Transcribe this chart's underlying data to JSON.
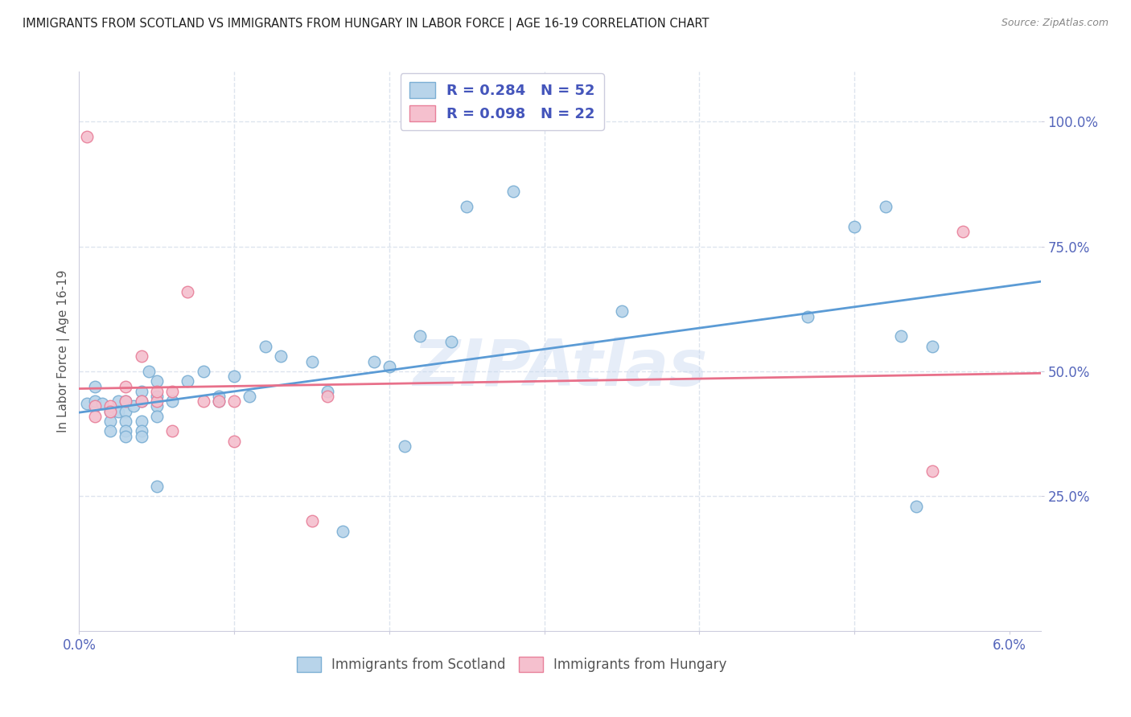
{
  "title": "IMMIGRANTS FROM SCOTLAND VS IMMIGRANTS FROM HUNGARY IN LABOR FORCE | AGE 16-19 CORRELATION CHART",
  "source": "Source: ZipAtlas.com",
  "ylabel": "In Labor Force | Age 16-19",
  "xlim": [
    0.0,
    0.062
  ],
  "ylim": [
    -0.02,
    1.1
  ],
  "scotland_color": "#b8d4ea",
  "scotland_edge": "#7bafd4",
  "hungary_color": "#f5c0ce",
  "hungary_edge": "#e8809a",
  "trendline_scotland_color": "#5b9bd5",
  "trendline_hungary_color": "#e8708a",
  "watermark": "ZIPAtlas",
  "scotland_x": [
    0.0005,
    0.001,
    0.001,
    0.0015,
    0.002,
    0.002,
    0.002,
    0.0025,
    0.0025,
    0.003,
    0.003,
    0.003,
    0.003,
    0.003,
    0.0035,
    0.004,
    0.004,
    0.004,
    0.004,
    0.004,
    0.0045,
    0.005,
    0.005,
    0.005,
    0.005,
    0.005,
    0.006,
    0.007,
    0.008,
    0.009,
    0.009,
    0.01,
    0.011,
    0.012,
    0.013,
    0.015,
    0.016,
    0.017,
    0.019,
    0.02,
    0.021,
    0.022,
    0.024,
    0.025,
    0.028,
    0.035,
    0.047,
    0.05,
    0.052,
    0.053,
    0.054,
    0.055
  ],
  "scotland_y": [
    0.435,
    0.44,
    0.47,
    0.435,
    0.42,
    0.4,
    0.38,
    0.44,
    0.42,
    0.44,
    0.42,
    0.4,
    0.38,
    0.37,
    0.43,
    0.46,
    0.44,
    0.4,
    0.38,
    0.37,
    0.5,
    0.48,
    0.45,
    0.43,
    0.41,
    0.27,
    0.44,
    0.48,
    0.5,
    0.44,
    0.45,
    0.49,
    0.45,
    0.55,
    0.53,
    0.52,
    0.46,
    0.18,
    0.52,
    0.51,
    0.35,
    0.57,
    0.56,
    0.83,
    0.86,
    0.62,
    0.61,
    0.79,
    0.83,
    0.57,
    0.23,
    0.55
  ],
  "hungary_x": [
    0.0005,
    0.001,
    0.001,
    0.002,
    0.002,
    0.003,
    0.003,
    0.004,
    0.004,
    0.005,
    0.005,
    0.006,
    0.006,
    0.007,
    0.008,
    0.009,
    0.01,
    0.01,
    0.015,
    0.016,
    0.055,
    0.057
  ],
  "hungary_y": [
    0.97,
    0.43,
    0.41,
    0.43,
    0.42,
    0.47,
    0.44,
    0.53,
    0.44,
    0.44,
    0.46,
    0.38,
    0.46,
    0.66,
    0.44,
    0.44,
    0.36,
    0.44,
    0.2,
    0.45,
    0.3,
    0.78
  ],
  "background_color": "#ffffff",
  "grid_color": "#dde4ee"
}
